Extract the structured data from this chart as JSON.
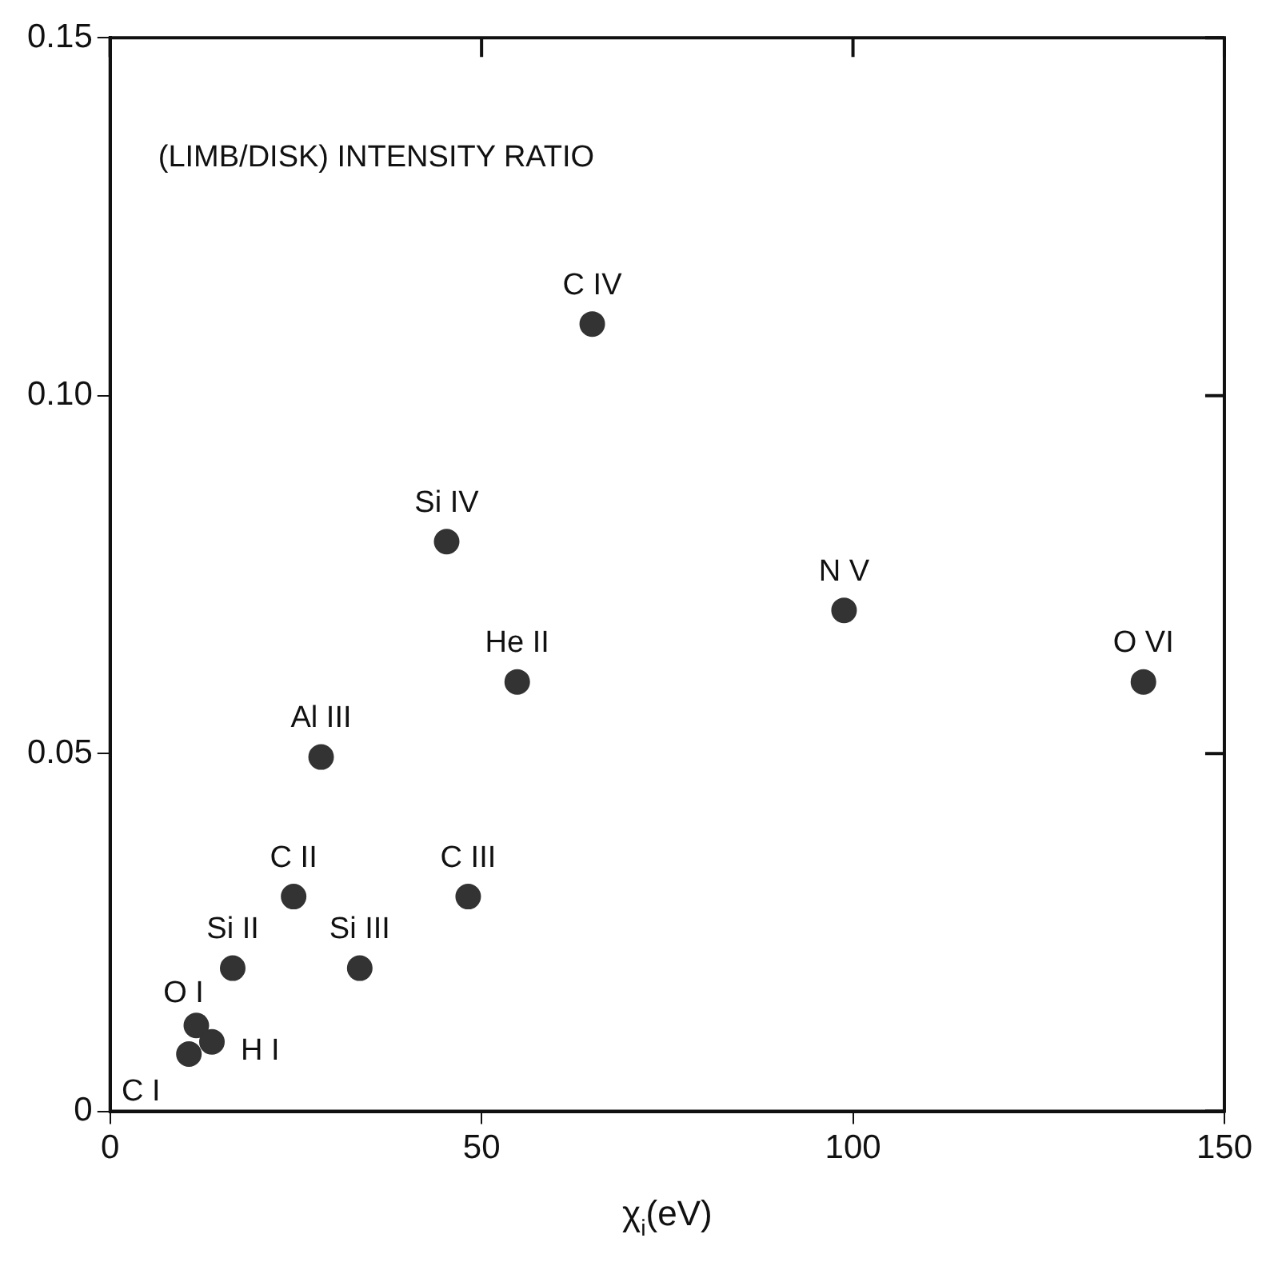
{
  "chart_data": {
    "type": "scatter",
    "xlabel": "χ$_{i}$(eV)",
    "annotations": [
      "(LIMB/DISK) INTENSITY RATIO",
      {
        "text": "C I",
        "x": 10.6,
        "y": 0.008
      },
      {
        "text": "O I",
        "x": 11.6,
        "y": 0.012
      },
      {
        "text": "H I",
        "x": 13.7,
        "y": 0.0097
      },
      {
        "text": "Si II",
        "x": 16.5,
        "y": 0.02
      },
      {
        "text": "C II",
        "x": 24.7,
        "y": 0.03
      },
      {
        "text": "Si III",
        "x": 33.6,
        "y": 0.02
      },
      {
        "text": "C III",
        "x": 48.2,
        "y": 0.03
      },
      {
        "text": "Al III",
        "x": 28.4,
        "y": 0.0495
      },
      {
        "text": "Si IV",
        "x": 45.3,
        "y": 0.0796
      },
      {
        "text": "He II",
        "x": 54.8,
        "y": 0.06
      },
      {
        "text": "C IV",
        "x": 64.9,
        "y": 0.11
      },
      {
        "text": "N V",
        "x": 98.8,
        "y": 0.07
      },
      {
        "text": "O VI",
        "x": 139.1,
        "y": 0.06
      }
    ],
    "x": [
      10.6,
      11.6,
      13.7,
      16.5,
      24.7,
      33.6,
      48.2,
      28.4,
      45.3,
      54.8,
      64.9,
      98.8,
      139.1
    ],
    "series": [
      {
        "color": "#333333",
        "values": [
          0.008,
          0.012,
          0.0097,
          0.02,
          0.03,
          0.02,
          0.03,
          0.0495,
          0.0796,
          0.06,
          0.11,
          0.07,
          0.06
        ]
      }
    ],
    "xlim": [
      0,
      150
    ],
    "xticks": [
      0,
      50,
      100,
      150
    ],
    "ylim": [
      0,
      0.15
    ],
    "yticks": [
      0,
      0.05,
      {
        "value": 0.1,
        "label": "0.10"
      },
      0.15
    ],
    "marker": "circle",
    "grid": false,
    "legend": false
  }
}
